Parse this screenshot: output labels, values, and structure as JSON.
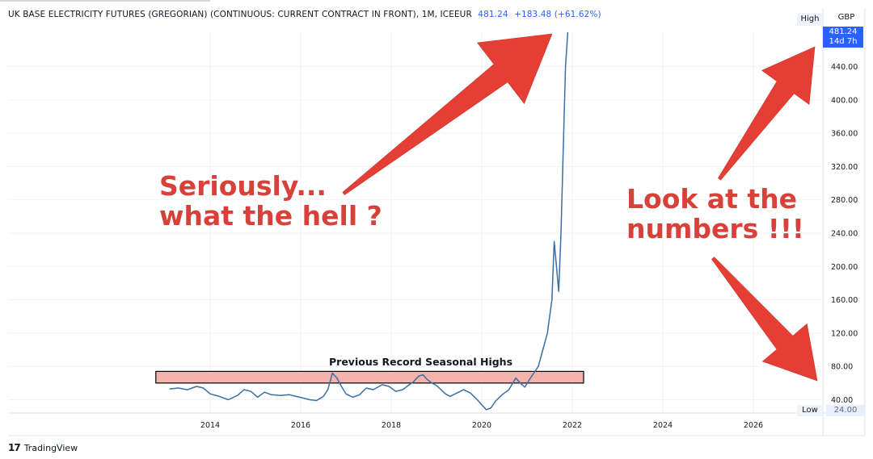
{
  "header": {
    "symbol": "UK BASE ELECTRICITY FUTURES (GREGORIAN) (CONTINUOUS: CURRENT CONTRACT IN FRONT), 1M, ICEEUR",
    "last_price": "481.24",
    "change": "+183.48 (+61.62%)"
  },
  "axis": {
    "high_label": "High",
    "low_label": "Low",
    "currency": "GBP",
    "last_price": "481.24",
    "countdown": "14d 7h",
    "low_value": "24.00"
  },
  "annotations": {
    "left_line1": "Seriously...",
    "left_line2": "what the hell ?",
    "right_line1": "Look at the",
    "right_line2": "numbers !!!",
    "zone_label": "Previous Record Seasonal Highs"
  },
  "brand": {
    "logo": "17",
    "name": "TradingView"
  },
  "colors": {
    "line": "#3a6ea5",
    "zone_fill": "#f4b3ac",
    "annotation": "#d8413a",
    "arrow": "#e53e35",
    "last_price_box": "#2962ff"
  },
  "chart_data": {
    "type": "line",
    "title": "",
    "xlabel": "",
    "ylabel": "",
    "y_ticks": [
      40,
      80,
      120,
      160,
      200,
      240,
      280,
      320,
      360,
      400,
      440
    ],
    "x_ticks": [
      2014,
      2016,
      2018,
      2020,
      2022,
      2024,
      2026
    ],
    "ylim": [
      24,
      481.24
    ],
    "xlim": [
      2012.2,
      2027.9
    ],
    "grid": true,
    "zone": {
      "y_low": 60,
      "y_high": 74,
      "x_start": 2012.8,
      "x_end": 2022.25
    },
    "series": [
      {
        "x": [
          2013.1,
          2013.3,
          2013.5,
          2013.7,
          2013.85,
          2014.0,
          2014.2,
          2014.4,
          2014.6,
          2014.75,
          2014.9,
          2015.05,
          2015.2,
          2015.35,
          2015.55,
          2015.75,
          2015.9,
          2016.05,
          2016.2,
          2016.35,
          2016.5,
          2016.6,
          2016.7,
          2016.8,
          2016.9,
          2017.0,
          2017.15,
          2017.3,
          2017.45,
          2017.6,
          2017.8,
          2017.95,
          2018.1,
          2018.25,
          2018.4,
          2018.5,
          2018.6,
          2018.7,
          2018.8,
          2018.9,
          2019.0,
          2019.1,
          2019.2,
          2019.3,
          2019.45,
          2019.6,
          2019.75,
          2019.9,
          2020.0,
          2020.1,
          2020.2,
          2020.3,
          2020.45,
          2020.6,
          2020.75,
          2020.85,
          2020.95,
          2021.05,
          2021.15,
          2021.25,
          2021.35,
          2021.45,
          2021.55,
          2021.6,
          2021.65,
          2021.7,
          2021.75,
          2021.8,
          2021.85,
          2021.9
        ],
        "y": [
          53,
          54,
          52,
          56,
          54,
          47,
          44,
          40,
          45,
          52,
          50,
          43,
          49,
          46,
          45,
          46,
          44,
          42,
          40,
          39,
          44,
          52,
          72,
          66,
          56,
          47,
          43,
          46,
          54,
          52,
          58,
          56,
          50,
          52,
          58,
          62,
          68,
          70,
          64,
          60,
          57,
          52,
          47,
          44,
          48,
          52,
          48,
          40,
          34,
          28,
          30,
          38,
          46,
          52,
          66,
          60,
          55,
          64,
          72,
          80,
          100,
          120,
          160,
          230,
          200,
          170,
          240,
          340,
          440,
          481.24
        ]
      }
    ]
  }
}
